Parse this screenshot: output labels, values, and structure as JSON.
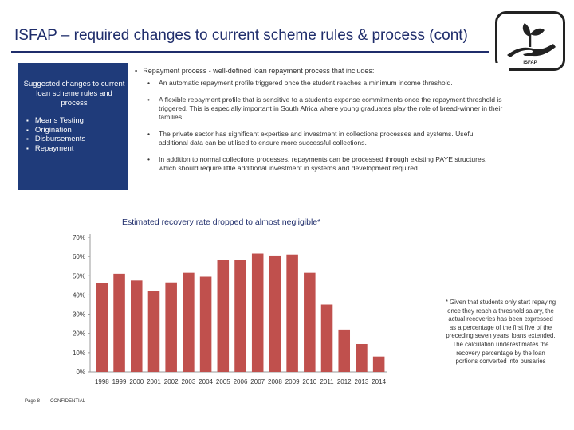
{
  "header": {
    "title": "ISFAP – required changes to current scheme rules & process (cont)",
    "logo_text": "ISFAP",
    "logo_icon": "hand-with-seedling-icon"
  },
  "colors": {
    "navy": "#1f3b7a",
    "title_blue": "#1f2d6b",
    "bar_red": "#c0504d"
  },
  "left_panel": {
    "heading": "Suggested changes to current loan scheme rules and process",
    "items": [
      "Means Testing",
      "Origination",
      "Disbursements",
      "Repayment"
    ]
  },
  "right_panel": {
    "heading": "Repayment process - well-defined loan repayment process that includes:",
    "items": [
      "An automatic repayment profile triggered once the student reaches a minimum income threshold.",
      "A flexible repayment profile that is sensitive to a student's expense commitments once the repayment threshold is triggered. This is especially important in South Africa where young graduates play the role of bread-winner in their families.",
      "The private sector has significant expertise and investment in collections processes and systems. Useful additional data can be utilised to ensure more successful collections.",
      "In addition to normal collections processes, repayments can be processed through existing PAYE structures, which should require little additional investment in systems and development required."
    ]
  },
  "chart_data": {
    "type": "bar",
    "title": "Estimated recovery rate dropped to almost negligible*",
    "categories": [
      "1998",
      "1999",
      "2000",
      "2001",
      "2002",
      "2003",
      "2004",
      "2005",
      "2006",
      "2007",
      "2008",
      "2009",
      "2010",
      "2011",
      "2012",
      "2013",
      "2014"
    ],
    "values": [
      0.46,
      0.51,
      0.475,
      0.42,
      0.465,
      0.515,
      0.495,
      0.58,
      0.58,
      0.615,
      0.605,
      0.61,
      0.515,
      0.35,
      0.22,
      0.145,
      0.08
    ],
    "ylim": [
      0,
      0.7
    ],
    "yticks": [
      0,
      0.1,
      0.2,
      0.3,
      0.4,
      0.5,
      0.6,
      0.7
    ],
    "ytick_labels": [
      "0%",
      "10%",
      "20%",
      "30%",
      "40%",
      "50%",
      "60%",
      "70%"
    ],
    "grid": false,
    "bar_color": "#c0504d"
  },
  "footnote": "* Given that students only start repaying once they reach a threshold salary, the actual recoveries has been expressed as a percentage of the first five of the preceding seven years' loans extended. The calculation underestimates the recovery percentage by the loan portions converted into bursaries",
  "footer": {
    "page": "Page 8",
    "label": "CONFIDENTIAL"
  }
}
